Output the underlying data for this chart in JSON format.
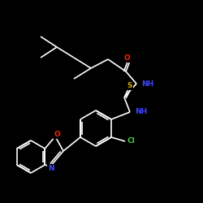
{
  "background_color": "#000000",
  "bond_color": "#ffffff",
  "atom_colors": {
    "O": "#ff2200",
    "N": "#4444ff",
    "S": "#ccaa00",
    "Cl": "#44cc44",
    "C": "#ffffff"
  },
  "figsize": [
    2.5,
    2.5
  ],
  "dpi": 100
}
